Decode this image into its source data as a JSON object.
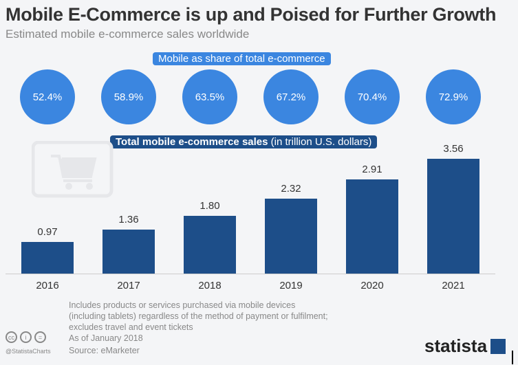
{
  "chart_data": {
    "type": "bar",
    "title": "Mobile E-Commerce is up and Poised for Further Growth",
    "subtitle": "Estimated mobile e-commerce sales worldwide",
    "categories": [
      "2016",
      "2017",
      "2018",
      "2019",
      "2020",
      "2021"
    ],
    "values": [
      0.97,
      1.36,
      1.8,
      2.32,
      2.91,
      3.56
    ],
    "value_labels": [
      "0.97",
      "1.36",
      "1.80",
      "2.32",
      "2.91",
      "3.56"
    ],
    "series_label_bold": "Total mobile e-commerce sales",
    "series_label_unit": "(in trillion U.S. dollars)",
    "share_label": "Mobile as share of total e-commerce",
    "shares": [
      "52.4%",
      "58.9%",
      "63.5%",
      "67.2%",
      "70.4%",
      "72.9%"
    ],
    "ylim": [
      0,
      3.6
    ],
    "grid": false,
    "colors": {
      "bars": "#1d4e89",
      "circles": "#3b86e0"
    }
  },
  "footer": {
    "notes": [
      "Includes products or services purchased via mobile devices",
      "(including tablets) regardless of the method of payment or fulfilment;",
      "excludes travel and event tickets",
      "As of January 2018"
    ],
    "source": "Source: eMarketer",
    "handle": "@StatistaCharts",
    "logo": "statista"
  },
  "icons": [
    "shopping-cart-icon",
    "creative-commons-icon",
    "attribution-icon",
    "no-derivatives-icon"
  ]
}
